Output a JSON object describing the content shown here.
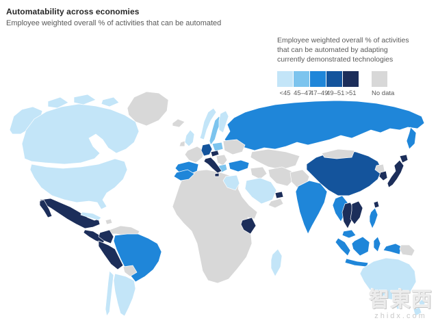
{
  "header": {
    "title": "Automatability across economies",
    "subtitle": "Employee weighted overall % of activities that can be automated"
  },
  "legend": {
    "caption_lines": [
      "Employee weighted overall % of activities",
      "that can be automated  by adapting",
      "currently demonstrated technologies"
    ],
    "bins": [
      {
        "label": "<45",
        "color": "#c3e5f8",
        "gap_before": false
      },
      {
        "label": "45–47",
        "color": "#7cc4ee",
        "gap_before": false
      },
      {
        "label": "47–49",
        "color": "#1f86d9",
        "gap_before": false
      },
      {
        "label": "49–51",
        "color": "#14549c",
        "gap_before": false
      },
      {
        "label": ">51",
        "color": "#1c2e5a",
        "gap_before": false
      },
      {
        "label": "No data",
        "color": "#d8d8d8",
        "gap_before": true
      }
    ]
  },
  "watermark": {
    "text_cjk": "智東西",
    "text_latin": "zhidx.com"
  },
  "chart_data": {
    "type": "choropleth-map",
    "title": "Automatability across economies",
    "metric": "Employee weighted overall % of activities that can be automated by adapting currently demonstrated technologies",
    "bin_labels": [
      "<45",
      "45–47",
      "47–49",
      "49–51",
      ">51",
      "No data"
    ],
    "regions": {
      "canada": {
        "name": "Canada",
        "bin": "<45"
      },
      "united-states": {
        "name": "United States",
        "bin": "<45"
      },
      "greenland": {
        "name": "Greenland",
        "bin": "No data"
      },
      "mexico": {
        "name": "Mexico",
        "bin": ">51"
      },
      "central-america": {
        "name": "Central America",
        "bin": ">51"
      },
      "cuba": {
        "name": "Cuba",
        "bin": "<45"
      },
      "hispaniola": {
        "name": "Hispaniola",
        "bin": "No data"
      },
      "venezuela": {
        "name": "Venezuela",
        "bin": "No data"
      },
      "colombia": {
        "name": "Colombia",
        "bin": ">51"
      },
      "peru": {
        "name": "Peru",
        "bin": ">51"
      },
      "brazil": {
        "name": "Brazil",
        "bin": "47–49"
      },
      "bolivia": {
        "name": "Bolivia",
        "bin": "No data"
      },
      "chile": {
        "name": "Chile",
        "bin": "<45"
      },
      "argentina": {
        "name": "Argentina",
        "bin": "<45"
      },
      "iceland": {
        "name": "Iceland",
        "bin": "No data"
      },
      "united-kingdom": {
        "name": "United Kingdom",
        "bin": "<45"
      },
      "ireland": {
        "name": "Ireland",
        "bin": "No data"
      },
      "norway": {
        "name": "Norway",
        "bin": "<45"
      },
      "sweden": {
        "name": "Sweden",
        "bin": "45–47"
      },
      "finland": {
        "name": "Finland",
        "bin": "<45"
      },
      "france": {
        "name": "France",
        "bin": "No data"
      },
      "spain": {
        "name": "Spain",
        "bin": "47–49"
      },
      "germany": {
        "name": "Germany",
        "bin": "49–51"
      },
      "czech-republic": {
        "name": "Czech Republic",
        "bin": ">51"
      },
      "poland": {
        "name": "Poland",
        "bin": "45–47"
      },
      "italy": {
        "name": "Italy",
        "bin": ">51"
      },
      "balkans": {
        "name": "Balkans",
        "bin": "No data"
      },
      "greece": {
        "name": "Greece",
        "bin": "45–47"
      },
      "ukraine": {
        "name": "Ukraine",
        "bin": "No data"
      },
      "turkey": {
        "name": "Turkey",
        "bin": "47–49"
      },
      "russia": {
        "name": "Russia",
        "bin": "47–49"
      },
      "kazakhstan": {
        "name": "Kazakhstan",
        "bin": "No data"
      },
      "iran": {
        "name": "Iran",
        "bin": "No data"
      },
      "iraq": {
        "name": "Iraq",
        "bin": "No data"
      },
      "saudi-arabia": {
        "name": "Saudi Arabia",
        "bin": "<45"
      },
      "uae": {
        "name": "United Arab Emirates",
        "bin": ">51"
      },
      "oman": {
        "name": "Oman",
        "bin": "No data"
      },
      "africa-other": {
        "name": "Other Africa",
        "bin": "No data"
      },
      "morocco": {
        "name": "Morocco",
        "bin": "47–49"
      },
      "egypt": {
        "name": "Egypt",
        "bin": "<45"
      },
      "kenya": {
        "name": "Kenya",
        "bin": ">51"
      },
      "madagascar": {
        "name": "Madagascar",
        "bin": "<45"
      },
      "pakistan": {
        "name": "Pakistan",
        "bin": "No data"
      },
      "india": {
        "name": "India",
        "bin": "47–49"
      },
      "china": {
        "name": "China",
        "bin": "49–51"
      },
      "mongolia": {
        "name": "Mongolia",
        "bin": "No data"
      },
      "myanmar": {
        "name": "Myanmar",
        "bin": "47–49"
      },
      "thailand": {
        "name": "Thailand",
        "bin": ">51"
      },
      "vietnam": {
        "name": "Vietnam",
        "bin": ">51"
      },
      "malaysia": {
        "name": "Malaysia",
        "bin": "47–49"
      },
      "indonesia": {
        "name": "Indonesia",
        "bin": "47–49"
      },
      "papua-new-guinea": {
        "name": "Papua New Guinea",
        "bin": "No data"
      },
      "philippines": {
        "name": "Philippines",
        "bin": "47–49"
      },
      "taiwan": {
        "name": "Taiwan",
        "bin": ">51"
      },
      "south-korea": {
        "name": "South Korea",
        "bin": ">51"
      },
      "north-korea": {
        "name": "North Korea",
        "bin": "No data"
      },
      "japan": {
        "name": "Japan",
        "bin": ">51"
      },
      "australia": {
        "name": "Australia",
        "bin": "<45"
      },
      "new-zealand": {
        "name": "New Zealand",
        "bin": "<45"
      }
    }
  }
}
